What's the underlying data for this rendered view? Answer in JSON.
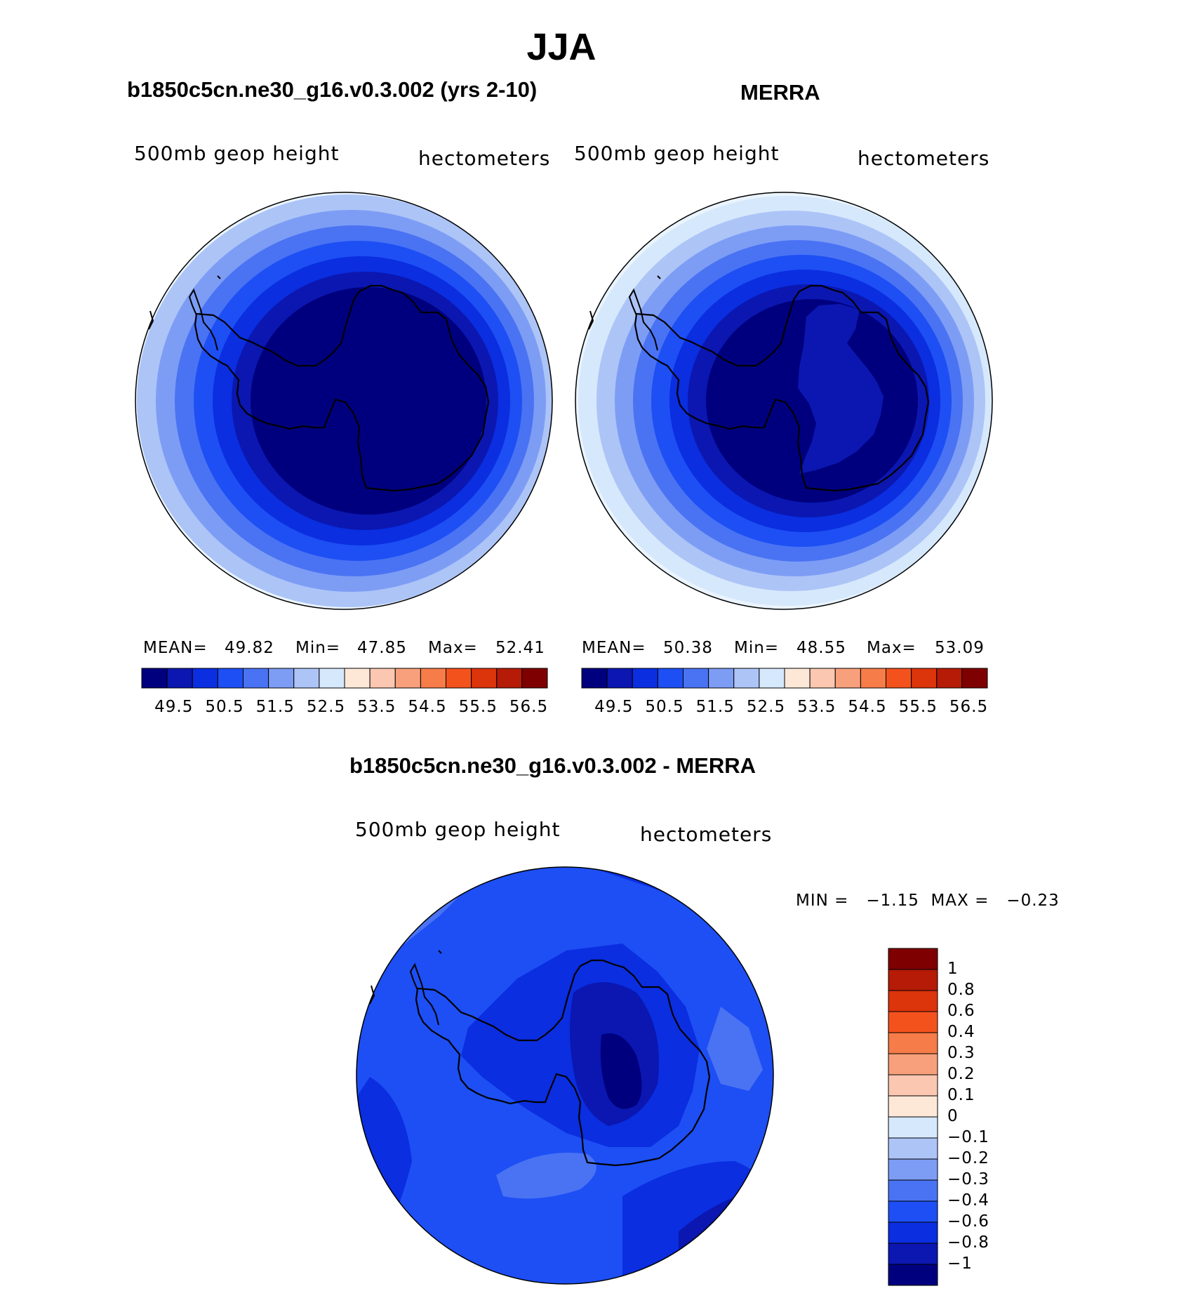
{
  "page": {
    "title": "JJA"
  },
  "panels": [
    {
      "id": "model",
      "title": "b1850c5cn.ne30_g16.v0.3.002 (yrs 2-10)",
      "variable": "500mb  geop  height",
      "units": "hectometers",
      "mean_label": "MEAN=",
      "mean": "49.82",
      "min_label": "Min=",
      "min": "47.85",
      "max_label": "Max=",
      "max": "52.41",
      "colorbar_ticks": [
        "49.5",
        "50.5",
        "51.5",
        "52.5",
        "53.5",
        "54.5",
        "55.5",
        "56.5"
      ],
      "colorbar_colors": [
        "#00007f",
        "#0b17b0",
        "#0a2ee0",
        "#1d4ff4",
        "#4a73f3",
        "#7d9df5",
        "#adc4f7",
        "#d6e8fc",
        "#fde8d8",
        "#fbc7b0",
        "#f8a07b",
        "#f67c49",
        "#f4521d",
        "#dc340b",
        "#b51b06",
        "#7f0000"
      ],
      "rings": [
        "#d6e8fc",
        "#adc4f7",
        "#7d9df5",
        "#4a73f3",
        "#1d4ff4",
        "#0a2ee0",
        "#0b17b0",
        "#00007f"
      ]
    },
    {
      "id": "obs",
      "title": "MERRA",
      "variable": "500mb  geop  height",
      "units": "hectometers",
      "mean_label": "MEAN=",
      "mean": "50.38",
      "min_label": "Min=",
      "min": "48.55",
      "max_label": "Max=",
      "max": "53.09",
      "colorbar_ticks": [
        "49.5",
        "50.5",
        "51.5",
        "52.5",
        "53.5",
        "54.5",
        "55.5",
        "56.5"
      ],
      "colorbar_colors": [
        "#00007f",
        "#0b17b0",
        "#0a2ee0",
        "#1d4ff4",
        "#4a73f3",
        "#7d9df5",
        "#adc4f7",
        "#d6e8fc",
        "#fde8d8",
        "#fbc7b0",
        "#f8a07b",
        "#f67c49",
        "#f4521d",
        "#dc340b",
        "#b51b06",
        "#7f0000"
      ],
      "rings": [
        "#eaf4fe",
        "#d6e8fc",
        "#adc4f7",
        "#7d9df5",
        "#4a73f3",
        "#1d4ff4",
        "#0a2ee0",
        "#0b17b0",
        "#00007f"
      ]
    },
    {
      "id": "diff",
      "title": "b1850c5cn.ne30_g16.v0.3.002 - MERRA",
      "variable": "500mb  geop  height",
      "units": "hectometers",
      "range_text": "MIN =   −1.15  MAX =   −0.23",
      "colorbar_ticks": [
        "1",
        "0.8",
        "0.6",
        "0.4",
        "0.3",
        "0.2",
        "0.1",
        "0",
        "−0.1",
        "−0.2",
        "−0.3",
        "−0.4",
        "−0.6",
        "−0.8",
        "−1"
      ],
      "colorbar_colors": [
        "#7f0000",
        "#b51b06",
        "#dc340b",
        "#f4521d",
        "#f67c49",
        "#f8a07b",
        "#fbc7b0",
        "#fde8d8",
        "#d6e8fc",
        "#adc4f7",
        "#7d9df5",
        "#4a73f3",
        "#1d4ff4",
        "#0a2ee0",
        "#0b17b0",
        "#00007f"
      ]
    }
  ]
}
